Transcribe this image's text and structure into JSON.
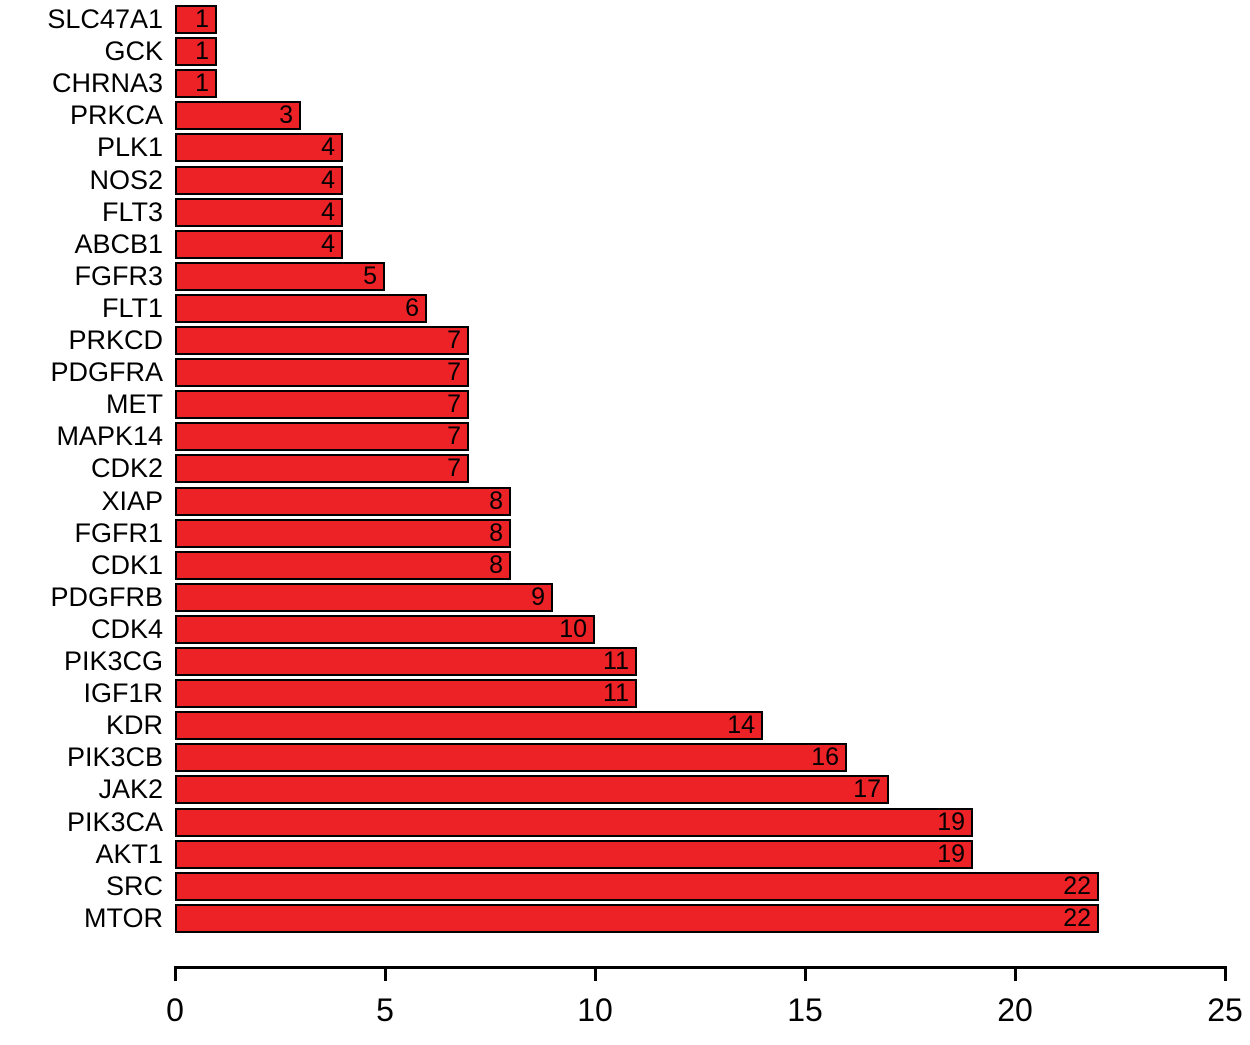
{
  "chart_data": {
    "type": "bar",
    "orientation": "horizontal",
    "title": "",
    "xlabel": "",
    "ylabel": "",
    "categories": [
      "SLC47A1",
      "GCK",
      "CHRNA3",
      "PRKCA",
      "PLK1",
      "NOS2",
      "FLT3",
      "ABCB1",
      "FGFR3",
      "FLT1",
      "PRKCD",
      "PDGFRA",
      "MET",
      "MAPK14",
      "CDK2",
      "XIAP",
      "FGFR1",
      "CDK1",
      "PDGFRB",
      "CDK4",
      "PIK3CG",
      "IGF1R",
      "KDR",
      "PIK3CB",
      "JAK2",
      "PIK3CA",
      "AKT1",
      "SRC",
      "MTOR"
    ],
    "values": [
      1,
      1,
      1,
      3,
      4,
      4,
      4,
      4,
      5,
      6,
      7,
      7,
      7,
      7,
      7,
      8,
      8,
      8,
      9,
      10,
      11,
      11,
      14,
      16,
      17,
      19,
      19,
      22,
      22
    ],
    "value_labels_shown": true,
    "xlim": [
      0,
      25
    ],
    "x_ticks": [
      0,
      5,
      10,
      15,
      20,
      25
    ],
    "grid": false,
    "legend": "none",
    "bar_color": "#EC2227",
    "bar_border_color": "#000000",
    "text_color": "#000000",
    "background_color": "#FFFFFF"
  }
}
